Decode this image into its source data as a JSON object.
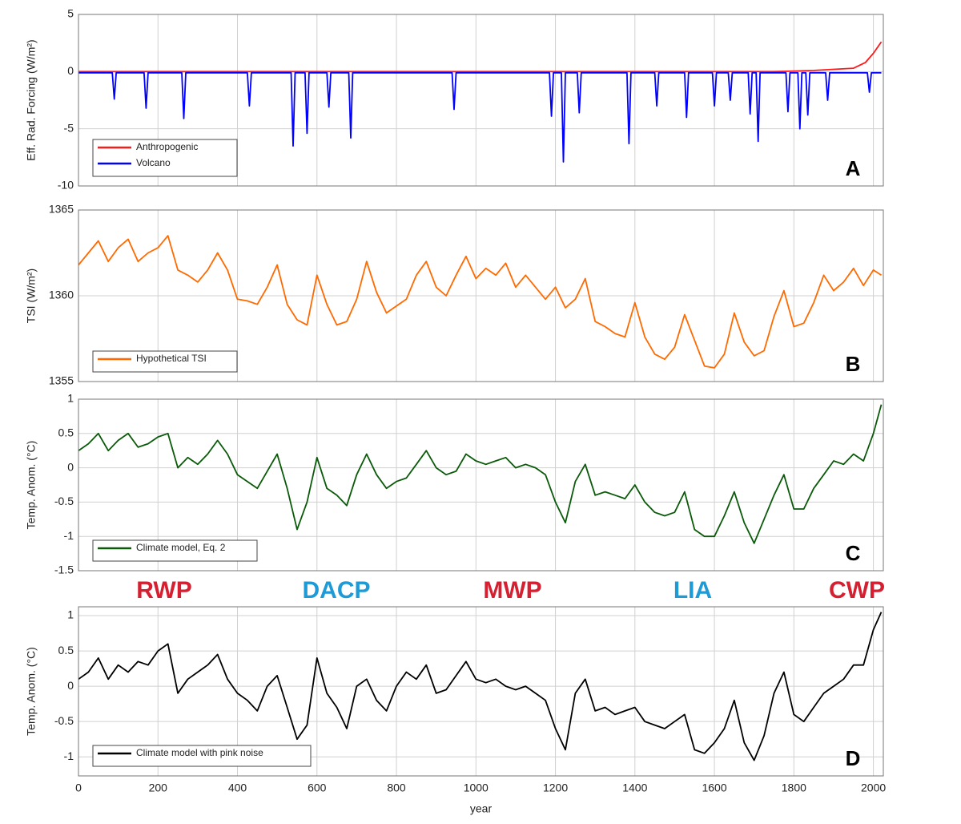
{
  "chart_data": [
    {
      "type": "line",
      "panel_label": "A",
      "ylabel": "Eff. Rad. Forcing (W/m²)",
      "xlim": [
        0,
        2025
      ],
      "ylim": [
        -10,
        5
      ],
      "xticks": [
        0,
        200,
        400,
        600,
        800,
        1000,
        1200,
        1400,
        1600,
        1800,
        2000
      ],
      "yticks": [
        -10,
        -5,
        0,
        5
      ],
      "grid": true,
      "legend": "lower left",
      "series": [
        {
          "name": "Anthropogenic",
          "color": "#ff1a1a",
          "x": [
            0,
            1750,
            1800,
            1850,
            1900,
            1950,
            1980,
            2000,
            2020
          ],
          "values": [
            0,
            0,
            0.05,
            0.1,
            0.2,
            0.3,
            0.8,
            1.6,
            2.6
          ]
        },
        {
          "name": "Volcano",
          "color": "#0000ff",
          "x": [
            0,
            85,
            90,
            95,
            165,
            170,
            175,
            260,
            265,
            270,
            425,
            430,
            435,
            535,
            540,
            545,
            570,
            575,
            580,
            625,
            630,
            635,
            680,
            685,
            690,
            940,
            945,
            950,
            1185,
            1190,
            1195,
            1215,
            1220,
            1225,
            1255,
            1260,
            1265,
            1380,
            1385,
            1390,
            1450,
            1455,
            1460,
            1525,
            1530,
            1535,
            1595,
            1600,
            1605,
            1635,
            1640,
            1645,
            1685,
            1690,
            1695,
            1705,
            1710,
            1715,
            1780,
            1785,
            1790,
            1810,
            1815,
            1820,
            1830,
            1835,
            1840,
            1880,
            1885,
            1890,
            1985,
            1990,
            1995,
            2020
          ],
          "values": [
            -0.1,
            -0.1,
            -2.4,
            -0.1,
            -0.1,
            -3.2,
            -0.1,
            -0.1,
            -4.1,
            -0.1,
            -0.1,
            -3.0,
            -0.1,
            -0.1,
            -6.5,
            -0.1,
            -0.1,
            -5.4,
            -0.1,
            -0.1,
            -3.1,
            -0.1,
            -0.1,
            -5.8,
            -0.1,
            -0.1,
            -3.3,
            -0.1,
            -0.1,
            -3.9,
            -0.1,
            -0.1,
            -7.9,
            -0.1,
            -0.1,
            -3.6,
            -0.1,
            -0.1,
            -6.3,
            -0.1,
            -0.1,
            -3.0,
            -0.1,
            -0.1,
            -4.0,
            -0.1,
            -0.1,
            -3.0,
            -0.1,
            -0.1,
            -2.5,
            -0.1,
            -0.1,
            -3.7,
            -0.1,
            -0.1,
            -6.1,
            -0.1,
            -0.1,
            -3.5,
            -0.1,
            -0.1,
            -5.0,
            -0.1,
            -0.1,
            -3.8,
            -0.1,
            -0.1,
            -2.5,
            -0.1,
            -0.1,
            -1.8,
            -0.1,
            -0.1
          ]
        }
      ]
    },
    {
      "type": "line",
      "panel_label": "B",
      "ylabel": "TSI (W/m²)",
      "xlim": [
        0,
        2025
      ],
      "ylim": [
        1355,
        1365
      ],
      "xticks": [
        0,
        200,
        400,
        600,
        800,
        1000,
        1200,
        1400,
        1600,
        1800,
        2000
      ],
      "yticks": [
        1355,
        1360,
        1365
      ],
      "grid": true,
      "legend": "lower left",
      "series": [
        {
          "name": "Hypothetical TSI",
          "color": "#ff6a00",
          "x": [
            0,
            25,
            50,
            75,
            100,
            125,
            150,
            175,
            200,
            225,
            250,
            275,
            300,
            325,
            350,
            375,
            400,
            425,
            450,
            475,
            500,
            525,
            550,
            575,
            600,
            625,
            650,
            675,
            700,
            725,
            750,
            775,
            800,
            825,
            850,
            875,
            900,
            925,
            950,
            975,
            1000,
            1025,
            1050,
            1075,
            1100,
            1125,
            1150,
            1175,
            1200,
            1225,
            1250,
            1275,
            1300,
            1325,
            1350,
            1375,
            1400,
            1425,
            1450,
            1475,
            1500,
            1525,
            1550,
            1575,
            1600,
            1625,
            1650,
            1675,
            1700,
            1725,
            1750,
            1775,
            1800,
            1825,
            1850,
            1875,
            1900,
            1925,
            1950,
            1975,
            2000,
            2020
          ],
          "values": [
            1361.8,
            1362.5,
            1363.2,
            1362,
            1362.8,
            1363.3,
            1362,
            1362.5,
            1362.8,
            1363.5,
            1361.5,
            1361.2,
            1360.8,
            1361.5,
            1362.5,
            1361.5,
            1359.8,
            1359.7,
            1359.5,
            1360.5,
            1361.8,
            1359.5,
            1358.6,
            1358.3,
            1361.2,
            1359.5,
            1358.3,
            1358.5,
            1359.8,
            1362,
            1360.2,
            1359,
            1359.4,
            1359.8,
            1361.2,
            1362,
            1360.5,
            1360,
            1361.2,
            1362.3,
            1361,
            1361.6,
            1361.2,
            1361.9,
            1360.5,
            1361.2,
            1360.5,
            1359.8,
            1360.5,
            1359.3,
            1359.8,
            1361,
            1358.5,
            1358.2,
            1357.8,
            1357.6,
            1359.6,
            1357.6,
            1356.6,
            1356.3,
            1357,
            1358.9,
            1357.4,
            1355.9,
            1355.8,
            1356.6,
            1359,
            1357.3,
            1356.5,
            1356.8,
            1358.8,
            1360.3,
            1358.2,
            1358.4,
            1359.6,
            1361.2,
            1360.3,
            1360.8,
            1361.6,
            1360.6,
            1361.5,
            1361.2
          ]
        }
      ]
    },
    {
      "type": "line",
      "panel_label": "C",
      "ylabel": "Temp. Anom. (°C)",
      "xlim": [
        0,
        2025
      ],
      "ylim": [
        -1.5,
        1
      ],
      "xticks": [
        0,
        200,
        400,
        600,
        800,
        1000,
        1200,
        1400,
        1600,
        1800,
        2000
      ],
      "yticks": [
        -1.5,
        -1,
        -0.5,
        0,
        0.5,
        1
      ],
      "grid": true,
      "legend": "lower left",
      "series": [
        {
          "name": "Climate model, Eq. 2",
          "color": "#0a5a0a",
          "x": [
            0,
            25,
            50,
            75,
            100,
            125,
            150,
            175,
            200,
            225,
            250,
            275,
            300,
            325,
            350,
            375,
            400,
            425,
            450,
            475,
            500,
            525,
            550,
            575,
            600,
            625,
            650,
            675,
            700,
            725,
            750,
            775,
            800,
            825,
            850,
            875,
            900,
            925,
            950,
            975,
            1000,
            1025,
            1050,
            1075,
            1100,
            1125,
            1150,
            1175,
            1200,
            1225,
            1250,
            1275,
            1300,
            1325,
            1350,
            1375,
            1400,
            1425,
            1450,
            1475,
            1500,
            1525,
            1550,
            1575,
            1600,
            1625,
            1650,
            1675,
            1700,
            1725,
            1750,
            1775,
            1800,
            1825,
            1850,
            1875,
            1900,
            1925,
            1950,
            1975,
            2000,
            2020
          ],
          "values": [
            0.25,
            0.35,
            0.5,
            0.25,
            0.4,
            0.5,
            0.3,
            0.35,
            0.45,
            0.5,
            0.0,
            0.15,
            0.05,
            0.2,
            0.4,
            0.2,
            -0.1,
            -0.2,
            -0.3,
            -0.05,
            0.2,
            -0.3,
            -0.9,
            -0.5,
            0.15,
            -0.3,
            -0.4,
            -0.55,
            -0.1,
            0.2,
            -0.1,
            -0.3,
            -0.2,
            -0.15,
            0.05,
            0.25,
            0.0,
            -0.1,
            -0.05,
            0.2,
            0.1,
            0.05,
            0.1,
            0.15,
            0.0,
            0.05,
            0.0,
            -0.1,
            -0.5,
            -0.8,
            -0.2,
            0.05,
            -0.4,
            -0.35,
            -0.4,
            -0.45,
            -0.25,
            -0.5,
            -0.65,
            -0.7,
            -0.65,
            -0.35,
            -0.9,
            -1.0,
            -1.0,
            -0.7,
            -0.35,
            -0.8,
            -1.1,
            -0.75,
            -0.4,
            -0.1,
            -0.6,
            -0.6,
            -0.3,
            -0.1,
            0.1,
            0.05,
            0.2,
            0.1,
            0.5,
            0.92
          ]
        }
      ]
    },
    {
      "type": "line",
      "panel_label": "D",
      "ylabel": "Temp. Anom. (°C)",
      "xlabel": "year",
      "xlim": [
        0,
        2025
      ],
      "ylim": [
        -1.27,
        1.125
      ],
      "xticks": [
        0,
        200,
        400,
        600,
        800,
        1000,
        1200,
        1400,
        1600,
        1800,
        2000
      ],
      "yticks": [
        -1,
        -0.5,
        0,
        0.5,
        1
      ],
      "grid": true,
      "legend": "lower left",
      "annotations": [
        {
          "text": "RWP",
          "color": "#d42030"
        },
        {
          "text": "DACP",
          "color": "#1e9ad6"
        },
        {
          "text": "MWP",
          "color": "#d42030"
        },
        {
          "text": "LIA",
          "color": "#1e9ad6"
        },
        {
          "text": "CWP",
          "color": "#d42030"
        }
      ],
      "series": [
        {
          "name": "Climate model with pink noise",
          "color": "#000000",
          "x": [
            0,
            25,
            50,
            75,
            100,
            125,
            150,
            175,
            200,
            225,
            250,
            275,
            300,
            325,
            350,
            375,
            400,
            425,
            450,
            475,
            500,
            525,
            550,
            575,
            600,
            625,
            650,
            675,
            700,
            725,
            750,
            775,
            800,
            825,
            850,
            875,
            900,
            925,
            950,
            975,
            1000,
            1025,
            1050,
            1075,
            1100,
            1125,
            1150,
            1175,
            1200,
            1225,
            1250,
            1275,
            1300,
            1325,
            1350,
            1375,
            1400,
            1425,
            1450,
            1475,
            1500,
            1525,
            1550,
            1575,
            1600,
            1625,
            1650,
            1675,
            1700,
            1725,
            1750,
            1775,
            1800,
            1825,
            1850,
            1875,
            1900,
            1925,
            1950,
            1975,
            2000,
            2020
          ],
          "values": [
            0.1,
            0.2,
            0.4,
            0.1,
            0.3,
            0.2,
            0.35,
            0.3,
            0.5,
            0.6,
            -0.1,
            0.1,
            0.2,
            0.3,
            0.45,
            0.1,
            -0.1,
            -0.2,
            -0.35,
            0.0,
            0.15,
            -0.3,
            -0.75,
            -0.55,
            0.4,
            -0.1,
            -0.3,
            -0.6,
            0.0,
            0.1,
            -0.2,
            -0.35,
            0.0,
            0.2,
            0.1,
            0.3,
            -0.1,
            -0.05,
            0.15,
            0.35,
            0.1,
            0.05,
            0.1,
            0.0,
            -0.05,
            0.0,
            -0.1,
            -0.2,
            -0.6,
            -0.9,
            -0.1,
            0.1,
            -0.35,
            -0.3,
            -0.4,
            -0.35,
            -0.3,
            -0.5,
            -0.55,
            -0.6,
            -0.5,
            -0.4,
            -0.9,
            -0.95,
            -0.8,
            -0.6,
            -0.2,
            -0.8,
            -1.05,
            -0.7,
            -0.1,
            0.2,
            -0.4,
            -0.5,
            -0.3,
            -0.1,
            0.0,
            0.1,
            0.3,
            0.3,
            0.8,
            1.05
          ]
        }
      ]
    }
  ]
}
